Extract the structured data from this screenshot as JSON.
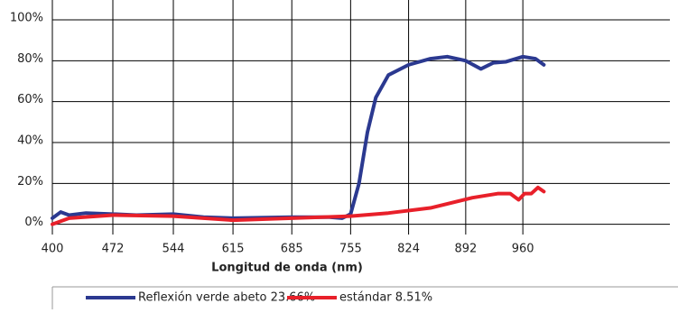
{
  "chart_data": {
    "type": "line",
    "x_label": "Longitud de onda (nm)",
    "xlim": [
      400,
      1135
    ],
    "xticks": [
      400,
      472,
      544,
      615,
      685,
      755,
      824,
      892,
      960
    ],
    "ylim": [
      -5,
      100
    ],
    "yticks": [
      {
        "value": 0,
        "label": "0%"
      },
      {
        "value": 20,
        "label": "20%"
      },
      {
        "value": 40,
        "label": "40%"
      },
      {
        "value": 60,
        "label": "60%"
      },
      {
        "value": 80,
        "label": "80%"
      },
      {
        "value": 100,
        "label": "100%"
      }
    ],
    "grid": true,
    "series": [
      {
        "name": "Reflexión verde abeto 23.66%",
        "color": "#2b3990",
        "x": [
          400,
          410,
          420,
          440,
          472,
          500,
          544,
          580,
          615,
          685,
          730,
          745,
          755,
          765,
          775,
          785,
          800,
          824,
          850,
          870,
          892,
          910,
          925,
          940,
          960,
          975,
          985
        ],
        "values": [
          3,
          6,
          4.5,
          5.5,
          5,
          4.5,
          5,
          3.5,
          3,
          3.5,
          3.5,
          3,
          5,
          20,
          45,
          62,
          73,
          78,
          81,
          82,
          80,
          76,
          79,
          79.5,
          82,
          81,
          78
        ]
      },
      {
        "name": "estándar 8.51%",
        "color": "#e8202a",
        "x": [
          400,
          420,
          472,
          544,
          615,
          685,
          755,
          800,
          850,
          900,
          930,
          945,
          955,
          962,
          970,
          978,
          985
        ],
        "values": [
          0,
          3,
          4.5,
          4,
          2,
          3,
          4,
          5.5,
          8,
          13,
          15,
          15,
          12,
          15,
          15,
          18,
          16
        ]
      }
    ]
  }
}
